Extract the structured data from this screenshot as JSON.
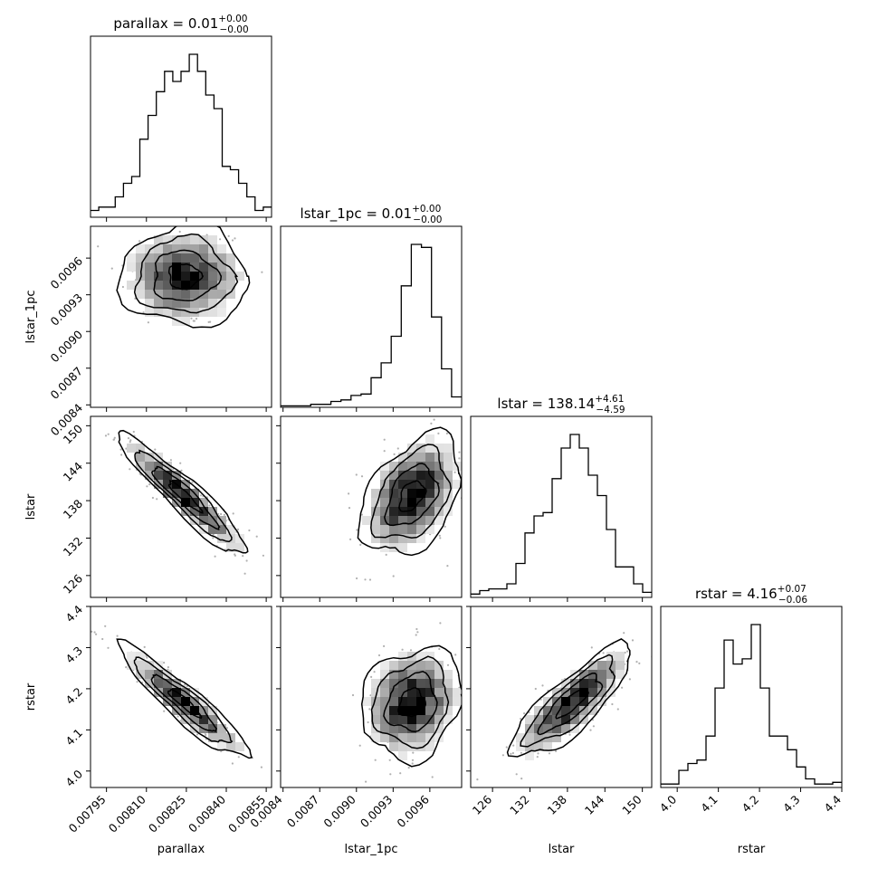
{
  "chart_data": {
    "type": "corner",
    "params": [
      "parallax",
      "lstar_1pc",
      "lstar",
      "rstar"
    ],
    "axes": [
      {
        "name": "parallax",
        "range": [
          0.00789,
          0.00857
        ],
        "ticks": [
          0.00795,
          0.0081,
          0.00825,
          0.0084,
          0.00855
        ],
        "tick_labels": [
          "0.00795",
          "0.00810",
          "0.00825",
          "0.00840",
          "0.00855"
        ]
      },
      {
        "name": "lstar_1pc",
        "range": [
          0.00838,
          0.00986
        ],
        "ticks": [
          0.0084,
          0.0087,
          0.009,
          0.0093,
          0.0096
        ],
        "tick_labels": [
          "0.0084",
          "0.0087",
          "0.0090",
          "0.0093",
          "0.0096"
        ]
      },
      {
        "name": "lstar",
        "range": [
          122.5,
          151.5
        ],
        "ticks": [
          126,
          132,
          138,
          144,
          150
        ],
        "tick_labels": [
          "126",
          "132",
          "138",
          "144",
          "150"
        ]
      },
      {
        "name": "rstar",
        "range": [
          3.96,
          4.4
        ],
        "ticks": [
          4.0,
          4.1,
          4.2,
          4.3,
          4.4
        ],
        "tick_labels": [
          "4.0",
          "4.1",
          "4.2",
          "4.3",
          "4.4"
        ]
      }
    ],
    "xlabels": [
      "parallax",
      "lstar_1pc",
      "lstar",
      "rstar"
    ],
    "ylabels": [
      "",
      "lstar_1pc",
      "lstar",
      "rstar"
    ],
    "titles": [
      {
        "param": "parallax",
        "median": "0.01",
        "plus": "+0.00",
        "minus": "−0.00"
      },
      {
        "param": "lstar_1pc",
        "median": "0.01",
        "plus": "+0.00",
        "minus": "−0.00"
      },
      {
        "param": "lstar",
        "median": "138.14",
        "plus": "+4.61",
        "minus": "−4.59"
      },
      {
        "param": "rstar",
        "median": "4.16",
        "plus": "+0.07",
        "minus": "−0.06"
      }
    ],
    "histograms": [
      {
        "param": "parallax",
        "bin_edges_start": 0.00789,
        "bin_edges_stop": 0.00857,
        "counts": [
          2,
          3,
          3,
          6,
          10,
          12,
          23,
          30,
          37,
          43,
          40,
          43,
          48,
          43,
          36,
          32,
          15,
          14,
          10,
          6,
          2,
          3
        ]
      },
      {
        "param": "lstar_1pc",
        "bin_edges_start": 0.00838,
        "bin_edges_stop": 0.00986,
        "counts": [
          1,
          1,
          1,
          2,
          2,
          4,
          5,
          8,
          9,
          20,
          30,
          48,
          82,
          110,
          108,
          61,
          26,
          7
        ]
      },
      {
        "param": "lstar",
        "bin_edges_start": 122.5,
        "bin_edges_stop": 151.5,
        "counts": [
          2,
          4,
          5,
          5,
          8,
          20,
          38,
          48,
          50,
          70,
          88,
          96,
          88,
          72,
          60,
          40,
          18,
          18,
          8,
          3
        ]
      },
      {
        "param": "rstar",
        "bin_edges_start": 3.96,
        "bin_edges_stop": 4.4,
        "counts": [
          2,
          2,
          10,
          14,
          16,
          30,
          58,
          86,
          72,
          75,
          95,
          58,
          30,
          30,
          22,
          12,
          5,
          2,
          2,
          3
        ]
      }
    ],
    "correlations": [
      {
        "x": "parallax",
        "y": "lstar_1pc",
        "corr": 0.0
      },
      {
        "x": "parallax",
        "y": "lstar",
        "corr": -0.93
      },
      {
        "x": "parallax",
        "y": "rstar",
        "corr": -0.92
      },
      {
        "x": "lstar_1pc",
        "y": "lstar",
        "corr": 0.4
      },
      {
        "x": "lstar_1pc",
        "y": "rstar",
        "corr": 0.15
      },
      {
        "x": "lstar",
        "y": "rstar",
        "corr": 0.82
      }
    ],
    "grid": false,
    "colors": {
      "line": "#000000",
      "density": "#000000",
      "points": "#b0b0b0",
      "background": "#ffffff"
    }
  }
}
